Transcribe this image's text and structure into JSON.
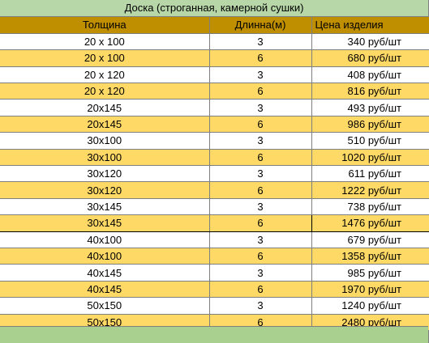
{
  "title": "Доска (строганная, камерной сушки)",
  "headers": {
    "thickness": "Толщина",
    "length": "Длинна(м)",
    "price": "Цена изделия"
  },
  "rows": [
    {
      "thickness": "20 х 100",
      "length": "3",
      "price": "340 руб/шт",
      "style": "white"
    },
    {
      "thickness": "20 х 100",
      "length": "6",
      "price": "680 руб/шт",
      "style": "yellow"
    },
    {
      "thickness": "20 х 120",
      "length": "3",
      "price": "408 руб/шт",
      "style": "white"
    },
    {
      "thickness": "20 х 120",
      "length": "6",
      "price": "816 руб/шт",
      "style": "yellow"
    },
    {
      "thickness": "20х145",
      "length": "3",
      "price": "493 руб/шт",
      "style": "white"
    },
    {
      "thickness": "20х145",
      "length": "6",
      "price": "986 руб/шт",
      "style": "yellow"
    },
    {
      "thickness": "30х100",
      "length": "3",
      "price": "510 руб/шт",
      "style": "white"
    },
    {
      "thickness": "30х100",
      "length": "6",
      "price": "1020 руб/шт",
      "style": "yellow"
    },
    {
      "thickness": "30х120",
      "length": "3",
      "price": "611 руб/шт",
      "style": "white"
    },
    {
      "thickness": "30х120",
      "length": "6",
      "price": "1222 руб/шт",
      "style": "yellow"
    },
    {
      "thickness": "30х145",
      "length": "3",
      "price": "738 руб/шт",
      "style": "white"
    },
    {
      "thickness": "30х145",
      "length": "6",
      "price": "1476 руб/шт",
      "style": "yellow",
      "boxed": true
    },
    {
      "thickness": "40х100",
      "length": "3",
      "price": "679 руб/шт",
      "style": "white"
    },
    {
      "thickness": "40х100",
      "length": "6",
      "price": "1358 руб/шт",
      "style": "yellow"
    },
    {
      "thickness": "40х145",
      "length": "3",
      "price": "985 руб/шт",
      "style": "white"
    },
    {
      "thickness": "40х145",
      "length": "6",
      "price": "1970 руб/шт",
      "style": "yellow"
    },
    {
      "thickness": "50х150",
      "length": "3",
      "price": "1240 руб/шт",
      "style": "white"
    },
    {
      "thickness": "50х150",
      "length": "6",
      "price": "2480 руб/шт",
      "style": "yellow"
    }
  ],
  "colors": {
    "title_bg": "#b7d7a8",
    "header_bg": "#bf8f00",
    "row_yellow": "#ffd966",
    "row_white": "#ffffff",
    "footer_bg": "#a9d08e"
  }
}
